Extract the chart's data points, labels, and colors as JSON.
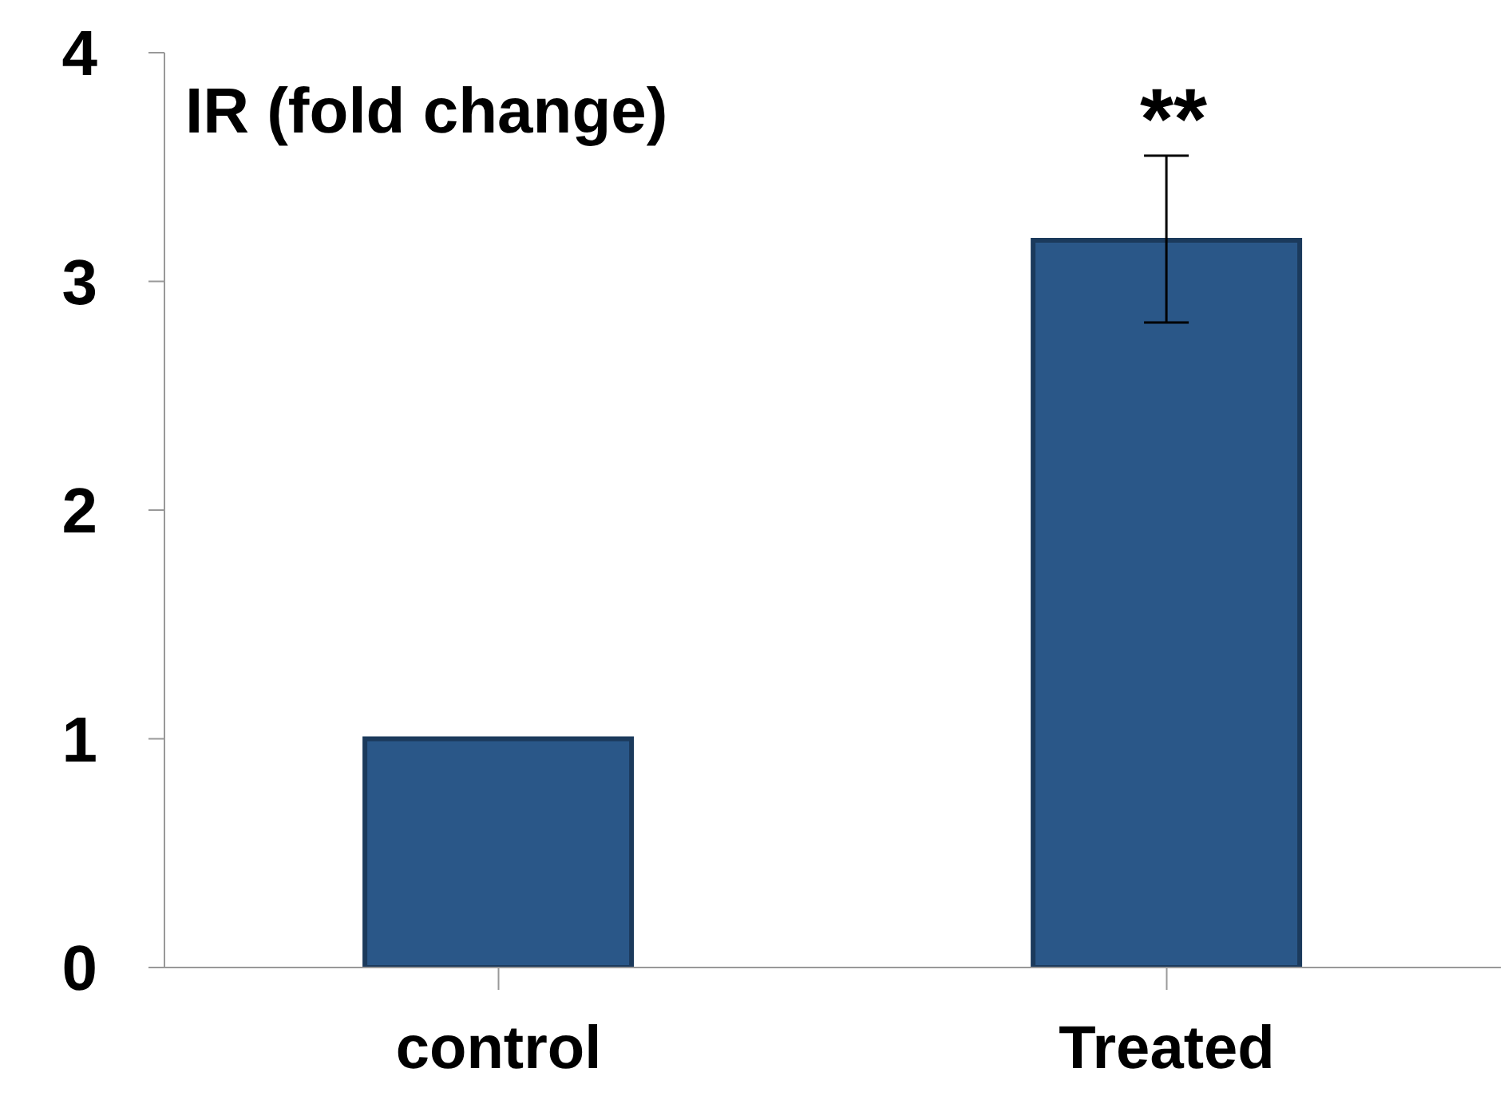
{
  "chart_data": {
    "type": "bar",
    "title": "IR (fold change)",
    "categories": [
      "control",
      "Treated"
    ],
    "values": [
      1,
      3.18
    ],
    "errors": [
      null,
      [
        2.82,
        3.55
      ]
    ],
    "color": "#2a5788",
    "ylim": [
      0,
      4
    ],
    "yticks": [
      0,
      1,
      2,
      3,
      4
    ],
    "grid": false,
    "legend": false,
    "annotations": [
      "**"
    ]
  }
}
